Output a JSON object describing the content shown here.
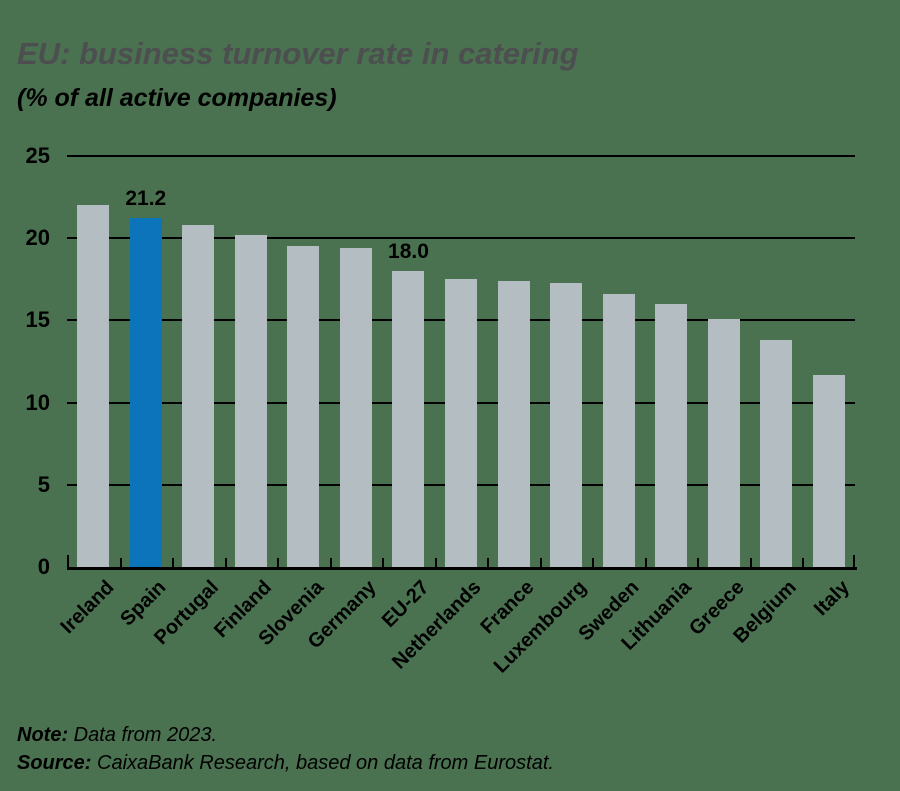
{
  "page": {
    "background_color": "#4a7150",
    "title_color": "#4d4e50",
    "text_color": "#000000"
  },
  "header": {
    "title": "EU: business turnover rate in catering",
    "subtitle": "(% of all active companies)"
  },
  "chart_data": {
    "type": "bar",
    "title": "EU: business turnover rate in catering",
    "subtitle": "(% of all active companies)",
    "categories": [
      "Ireland",
      "Spain",
      "Portugal",
      "Finland",
      "Slovenia",
      "Germany",
      "EU-27",
      "Netherlands",
      "France",
      "Luxembourg",
      "Sweden",
      "Lithuania",
      "Greece",
      "Belgium",
      "Italy"
    ],
    "values": [
      22.0,
      21.2,
      20.8,
      20.2,
      19.5,
      19.4,
      18.0,
      17.5,
      17.4,
      17.3,
      16.6,
      16.0,
      15.1,
      13.8,
      11.7
    ],
    "value_labels": [
      {
        "category": "Spain",
        "index": 1,
        "text": "21.2"
      },
      {
        "category": "EU-27",
        "index": 6,
        "text": "18.0"
      }
    ],
    "highlight_index": 1,
    "highlight_category": "Spain",
    "ylim": [
      0,
      25
    ],
    "yticks": [
      0,
      5,
      10,
      15,
      20,
      25
    ],
    "grid": true,
    "legend": false,
    "xlabel": "",
    "ylabel": "",
    "x_tick_rotation_deg": 45,
    "bar_color": "#b3bdc2",
    "highlight_color": "#0b74ba",
    "gridline_color": "#000000",
    "axis_color": "#000000"
  },
  "footer": {
    "note_label": "Note:",
    "note_text": " Data from 2023.",
    "source_label": "Source:",
    "source_text": " CaixaBank Research, based on data from Eurostat."
  }
}
